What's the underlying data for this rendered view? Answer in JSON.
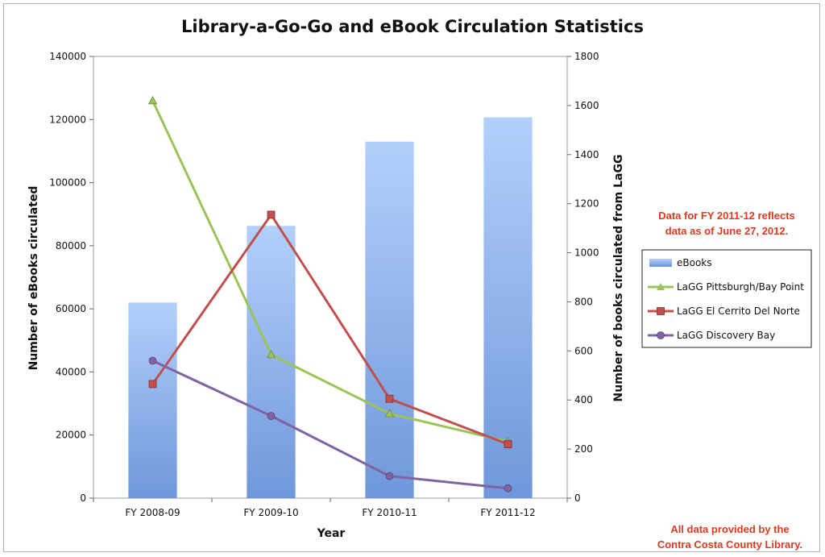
{
  "chart_data": {
    "type": "bar",
    "title": "Library-a-Go-Go and eBook Circulation Statistics",
    "xlabel": "Year",
    "ylabel": "Number of eBooks circulated",
    "y2label": "Number of books circulated from LaGG",
    "categories": [
      "FY 2008-09",
      "FY 2009-10",
      "FY 2010-11",
      "FY 2011-12"
    ],
    "ylim": [
      0,
      140000
    ],
    "y_ticks": [
      "0",
      "20000",
      "40000",
      "60000",
      "80000",
      "100000",
      "120000",
      "140000"
    ],
    "y2lim": [
      0,
      1800
    ],
    "y2_ticks": [
      "0",
      "200",
      "400",
      "600",
      "800",
      "1000",
      "1200",
      "1400",
      "1600",
      "1800"
    ],
    "series": [
      {
        "name": "eBooks",
        "type": "bar",
        "axis": "left",
        "color": "#7ea6e8",
        "values": [
          62000,
          86300,
          113000,
          120700
        ]
      },
      {
        "name": "LaGG Pittsburgh/Bay Point",
        "type": "line",
        "axis": "right",
        "color": "#9cc25a",
        "marker": "triangle",
        "values": [
          1620,
          585,
          345,
          230
        ]
      },
      {
        "name": "LaGG El Cerrito Del Norte",
        "type": "line",
        "axis": "right",
        "color": "#c0504d",
        "marker": "square",
        "values": [
          465,
          1155,
          405,
          220
        ]
      },
      {
        "name": "LaGG Discovery Bay",
        "type": "line",
        "axis": "right",
        "color": "#8064a2",
        "marker": "circle",
        "values": [
          560,
          335,
          90,
          40
        ]
      }
    ],
    "grid": false,
    "legend_position": "right",
    "annotations": [
      "Data for FY 2011-12 reflects",
      "data as of June 27, 2012.",
      "All data provided by the",
      "Contra Costa County Library."
    ]
  }
}
